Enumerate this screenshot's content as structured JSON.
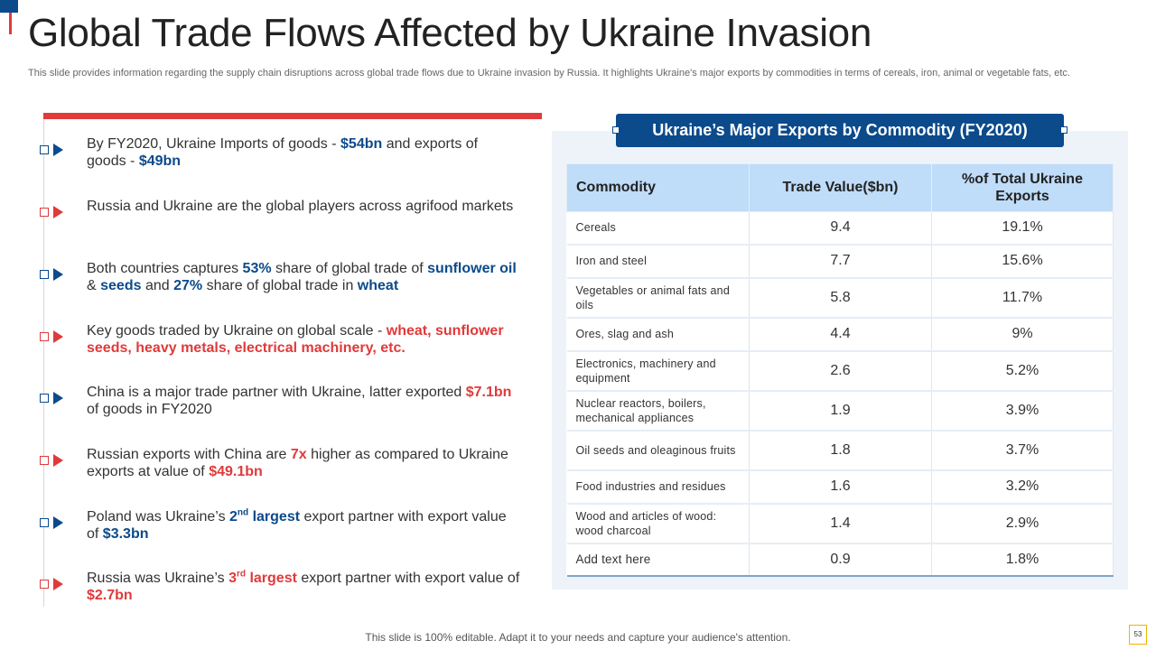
{
  "title": "Global Trade Flows Affected by Ukraine Invasion",
  "subtitle": "This slide provides information regarding the supply chain disruptions across global trade flows due to Ukraine invasion by Russia. It highlights Ukraine's major exports by commodities in terms of cereals, iron, animal or vegetable fats, etc.",
  "colors": {
    "blue": "#0b4a8b",
    "red": "#e03a3a",
    "table_header": "#bfdcf9",
    "panel": "#eef3fa"
  },
  "bullets": [
    {
      "color": "blue",
      "segments": [
        {
          "t": "By FY2020, Ukraine Imports of goods - "
        },
        {
          "t": "$54bn",
          "s": "hb"
        },
        {
          "t": " and exports of goods - "
        },
        {
          "t": "$49bn",
          "s": "hb"
        }
      ]
    },
    {
      "color": "red",
      "segments": [
        {
          "t": "Russia and Ukraine are the global players across agrifood markets"
        }
      ]
    },
    {
      "color": "blue",
      "segments": [
        {
          "t": "Both countries captures "
        },
        {
          "t": "53%",
          "s": "hb"
        },
        {
          "t": " share of global trade of "
        },
        {
          "t": "sunflower oil",
          "s": "hb"
        },
        {
          "t": " & "
        },
        {
          "t": "seeds",
          "s": "hb"
        },
        {
          "t": " and "
        },
        {
          "t": "27%",
          "s": "hb"
        },
        {
          "t": " share of global trade in "
        },
        {
          "t": "wheat",
          "s": "hb"
        }
      ]
    },
    {
      "color": "red",
      "segments": [
        {
          "t": "Key goods traded by Ukraine on global scale - "
        },
        {
          "t": "wheat, sunflower seeds, heavy metals, electrical machinery, etc.",
          "s": "hr"
        }
      ]
    },
    {
      "color": "blue",
      "segments": [
        {
          "t": "China is a major trade partner with Ukraine, latter exported "
        },
        {
          "t": "$7.1bn",
          "s": "hr"
        },
        {
          "t": " of goods in FY2020"
        }
      ]
    },
    {
      "color": "red",
      "segments": [
        {
          "t": "Russian exports with China are "
        },
        {
          "t": "7x",
          "s": "hr"
        },
        {
          "t": " higher as compared to Ukraine exports at value of "
        },
        {
          "t": "$49.1bn",
          "s": "hr"
        }
      ]
    },
    {
      "color": "blue",
      "segments": [
        {
          "t": "Poland was Ukraine’s "
        },
        {
          "t": "2",
          "s": "hb"
        },
        {
          "t": "nd",
          "s": "hb",
          "sup": true
        },
        {
          "t": " largest",
          "s": "hb"
        },
        {
          "t": " export partner with export value of "
        },
        {
          "t": "$3.3bn",
          "s": "hb"
        }
      ]
    },
    {
      "color": "red",
      "segments": [
        {
          "t": "Russia was Ukraine’s "
        },
        {
          "t": "3",
          "s": "hr"
        },
        {
          "t": "rd",
          "s": "hr",
          "sup": true
        },
        {
          "t": " largest",
          "s": "hr"
        },
        {
          "t": " export partner with export value of "
        },
        {
          "t": "$2.7bn",
          "s": "hr"
        }
      ]
    }
  ],
  "panel": {
    "header": "Ukraine’s Major Exports by Commodity (FY2020)",
    "columns": [
      "Commodity",
      "Trade Value($bn)",
      "%of Total Ukraine Exports"
    ],
    "rows": [
      {
        "commodity": "Cereals",
        "value": "9.4",
        "pct": "19.1%"
      },
      {
        "commodity": "Iron and steel",
        "value": "7.7",
        "pct": "15.6%"
      },
      {
        "commodity": "Vegetables or animal fats and oils",
        "value": "5.8",
        "pct": "11.7%"
      },
      {
        "commodity": "Ores, slag and ash",
        "value": "4.4",
        "pct": "9%"
      },
      {
        "commodity": "Electronics, machinery and equipment",
        "value": "2.6",
        "pct": "5.2%"
      },
      {
        "commodity": "Nuclear reactors, boilers, mechanical appliances",
        "value": "1.9",
        "pct": "3.9%"
      },
      {
        "commodity": "Oil seeds and oleaginous fruits",
        "value": "1.8",
        "pct": "3.7%"
      },
      {
        "commodity": "Food industries and residues",
        "value": "1.6",
        "pct": "3.2%"
      },
      {
        "commodity": "Wood and articles of wood: wood charcoal",
        "value": "1.4",
        "pct": "2.9%"
      },
      {
        "commodity": "Add text here",
        "value": "0.9",
        "pct": "1.8%"
      }
    ]
  },
  "footer": "This slide is 100% editable. Adapt it to your needs and capture your audience's attention.",
  "page_number": "53"
}
